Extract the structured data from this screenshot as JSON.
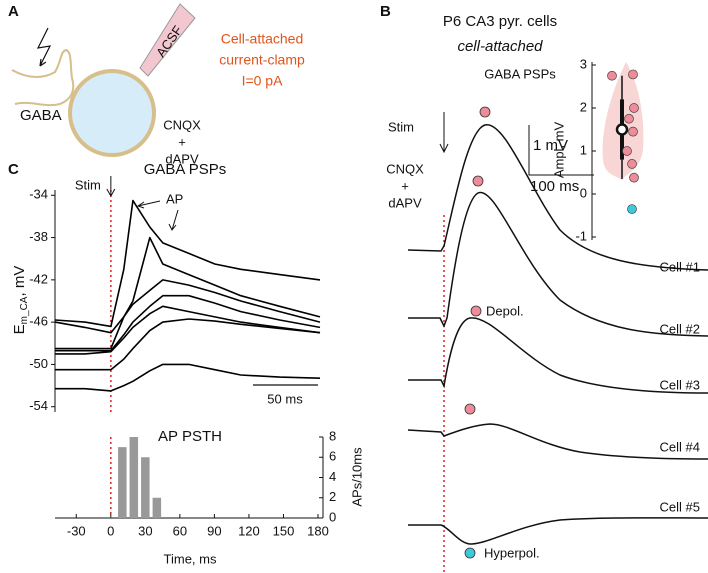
{
  "panel_labels": [
    "A",
    "B",
    "C"
  ],
  "panel_a": {
    "gaba": "GABA",
    "acsf": "ACSF",
    "recording": [
      "Cell-attached",
      "current-clamp",
      "I=0 pA"
    ],
    "drugs": [
      "CNQX",
      "+",
      "dAPV"
    ]
  },
  "panel_b": {
    "title": "P6 CA3 pyr. cells",
    "subtitle": "cell-attached",
    "trace_title": "GABA PSPs",
    "stim": "Stim",
    "drugs": [
      "CNQX",
      "+",
      "dAPV"
    ],
    "scale_y": "1 mV",
    "scale_x": "100 ms",
    "cells": [
      "Cell #1",
      "Cell #2",
      "Cell #3",
      "Cell #4",
      "Cell #5"
    ],
    "depol": "Depol.",
    "hyperpol": "Hyperpol."
  },
  "chart_data": [
    {
      "type": "line",
      "title": "GABA PSPs",
      "y_label": {
        "main": "E",
        "sub": "m_CA",
        "unit": ", mV"
      },
      "stim": "Stim",
      "ap": "AP",
      "scale_bar": "50 ms",
      "color": "#000000",
      "x": [
        -43,
        -20,
        0,
        10,
        17,
        30,
        40,
        60,
        80,
        100,
        130,
        161
      ],
      "xlim": [
        -43,
        161
      ],
      "ylim": [
        -54.5,
        -33.5
      ],
      "yticks": [
        -34,
        -38,
        -42,
        -46,
        -50,
        -54
      ],
      "series": [
        {
          "values": [
            -45.8,
            -46,
            -46.4,
            -41,
            -34.5,
            -37,
            -38.5,
            -39.5,
            -40.5,
            -41,
            -41.5,
            -42
          ]
        },
        {
          "values": [
            -48.5,
            -48.5,
            -48.5,
            -45.5,
            -44,
            -38,
            -40.5,
            -41.5,
            -42.5,
            -43.5,
            -44.5,
            -45.5
          ]
        },
        {
          "values": [
            -46,
            -46.5,
            -47,
            -45.5,
            -44.3,
            -43,
            -42,
            -42.5,
            -43.2,
            -44,
            -45,
            -46
          ]
        },
        {
          "values": [
            -48.7,
            -48.7,
            -48.7,
            -47.2,
            -46,
            -44.5,
            -43.5,
            -43.5,
            -44.2,
            -45,
            -45.8,
            -46.5
          ]
        },
        {
          "values": [
            -49,
            -49,
            -48.8,
            -47.5,
            -46.5,
            -45.2,
            -44.5,
            -45,
            -45.5,
            -46,
            -46.5,
            -47
          ]
        },
        {
          "values": [
            -50.5,
            -50.5,
            -50.5,
            -49.5,
            -48.5,
            -46.8,
            -46,
            -45.7,
            -45.9,
            -46.2,
            -46.6,
            -47
          ]
        },
        {
          "values": [
            -52.3,
            -52.3,
            -52.5,
            -52,
            -51.6,
            -50.6,
            -50,
            -50,
            -50.5,
            -51,
            -51.2,
            -51.3
          ]
        }
      ]
    },
    {
      "type": "histogram",
      "title": "AP PSTH",
      "x_label": "Time, ms",
      "y_label": "APs/10ms",
      "color": "#999999",
      "bins": [
        5,
        15,
        25,
        35,
        45
      ],
      "values": [
        7,
        8,
        6,
        2
      ],
      "xlim": [
        -45,
        180
      ],
      "xticks": [
        -30,
        0,
        30,
        60,
        90,
        120,
        150,
        180
      ],
      "ylim": [
        0,
        8
      ],
      "yticks": [
        0,
        2,
        4,
        6,
        8
      ]
    },
    {
      "type": "strip",
      "y_label": "Ampl, mV",
      "ylim": [
        -1,
        3
      ],
      "yticks": [
        -1,
        0,
        1,
        2,
        3
      ],
      "series": [
        {
          "color": "#f08c9a",
          "values": [
            2.75,
            2.78,
            2.0,
            1.75,
            1.45,
            1.0,
            0.7,
            0.38
          ]
        },
        {
          "color": "#3ec8d8",
          "values": [
            -0.35
          ]
        }
      ],
      "box": {
        "median": 1.5,
        "q1": 0.8,
        "q3": 2.2,
        "whisker_low": 0.35,
        "whisker_high": 2.75
      }
    }
  ]
}
